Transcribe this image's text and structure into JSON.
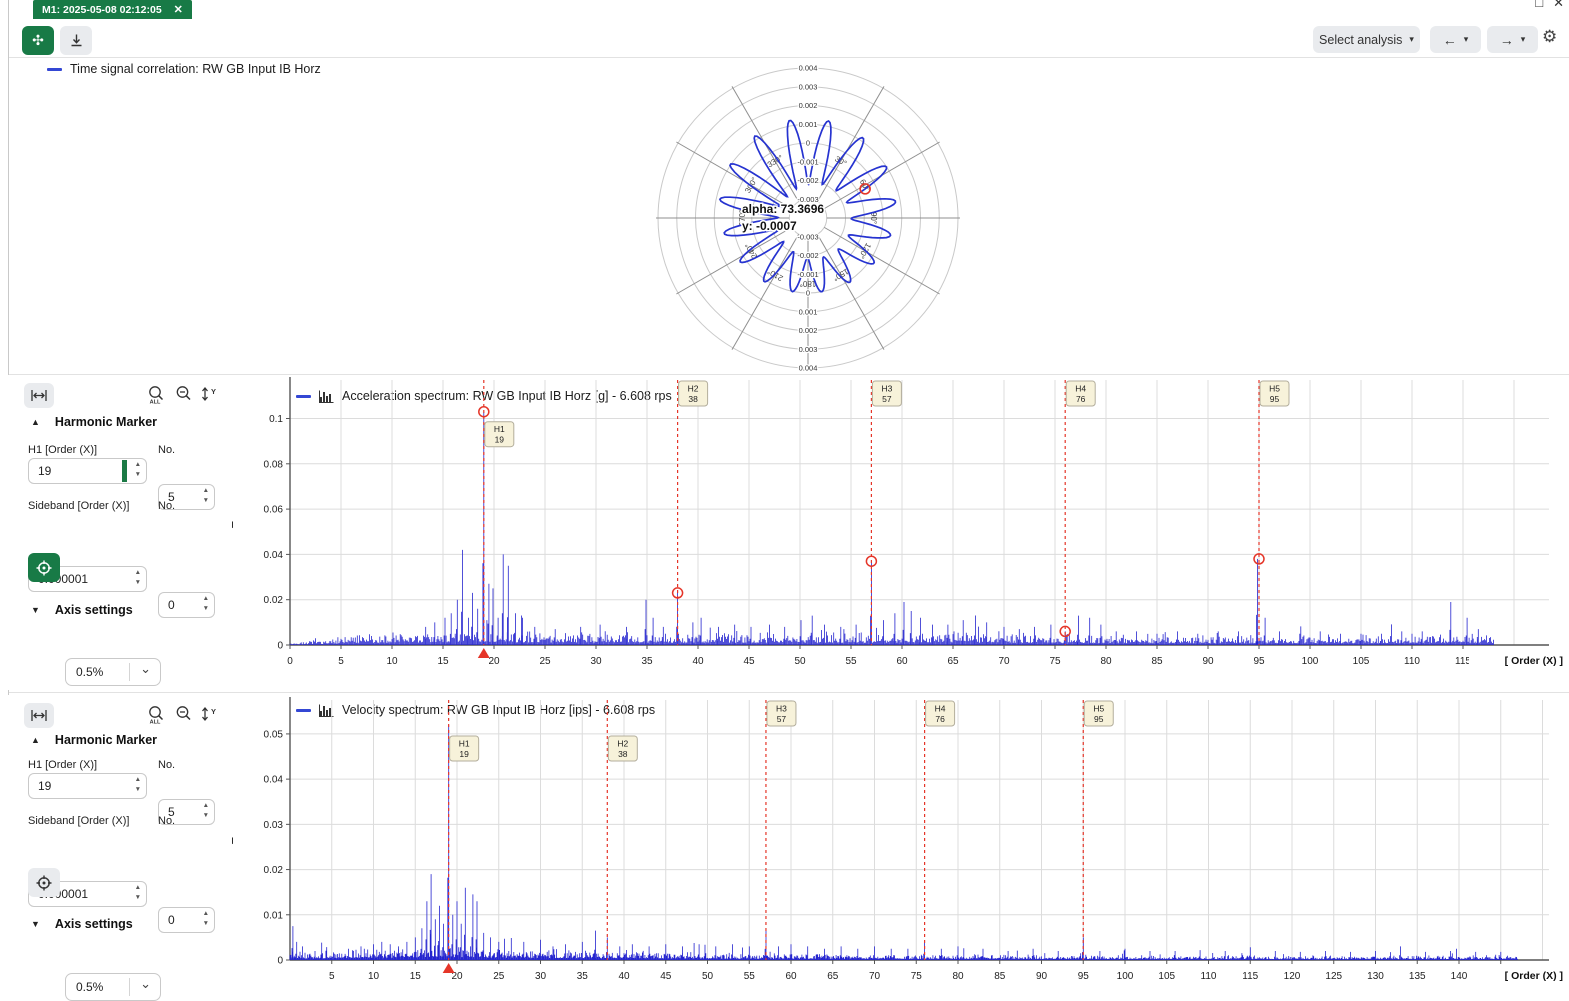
{
  "window": {
    "tab_title": "M1: 2025-05-08 02:12:05"
  },
  "icons": {
    "close": "✕",
    "maximize": "□",
    "back": "←",
    "forward": "→",
    "chevron_down": "▾",
    "select_chevron": "⌄",
    "gear": "⚙",
    "app": "✣",
    "collapse_left": "◀",
    "collapse_up": "▲",
    "collapse_down": "▼",
    "spin_up": "▲",
    "spin_down": "▼"
  },
  "toolbar": {
    "select_analysis_label": "Select analysis"
  },
  "polar_legend": "Time signal correlation: RW GB Input IB Horz",
  "panels": [
    {
      "header": "Harmonic Marker",
      "h1_label": "H1 [Order (X)]",
      "h1_value": "19",
      "no_label": "No.",
      "no_value": "5",
      "sideband_label": "Sideband [Order (X)]",
      "sideband_value": "0.000001",
      "sideband_no_label": "No.",
      "sideband_no_value": "0",
      "tolerance_value": "0.5%",
      "axis_settings_label": "Axis settings"
    },
    {
      "header": "Harmonic Marker",
      "h1_label": "H1 [Order (X)]",
      "h1_value": "19",
      "no_label": "No.",
      "no_value": "5",
      "sideband_label": "Sideband [Order (X)]",
      "sideband_value": "0.000001",
      "sideband_no_label": "No.",
      "sideband_no_value": "0",
      "tolerance_value": "0.5%",
      "axis_settings_label": "Axis settings"
    }
  ],
  "chart_data": [
    {
      "type": "line",
      "subtype": "polar",
      "title": "Time signal correlation: RW GB Input IB Horz",
      "rlim": [
        -0.004,
        0.004
      ],
      "rticks": [
        0.004,
        0.003,
        0.002,
        0.001,
        0,
        -0.001,
        -0.002,
        -0.003
      ],
      "angle_ticks_deg": [
        30,
        60,
        90,
        120,
        150,
        180,
        210,
        240,
        270,
        300,
        330
      ],
      "annotation": {
        "line1": "alpha: 73.3696",
        "line2": "y: -0.0007"
      },
      "series_model": {
        "lobes": 16,
        "mean": -0.0007,
        "amplitude": 0.00135,
        "amplitude_mod": 0.00045,
        "phase_deg": 258,
        "marker_angle_deg": 63
      },
      "line_color": "#2633d0",
      "marker_color": "#e53528"
    },
    {
      "type": "bar",
      "subtype": "spectrum",
      "title": "Acceleration spectrum: RW GB Input IB Horz [g] - 6.608 rps",
      "xlabel": "[ Order (X) ]",
      "ylim": [
        0,
        0.117
      ],
      "yticks": [
        0,
        0.02,
        0.04,
        0.06,
        0.08,
        0.1
      ],
      "xtick_start": 0,
      "xtick_end": 115,
      "xtick_step": 5,
      "xmax": 118,
      "line_color": "#2424cf",
      "marker_color": "#e53528",
      "fundamental_marker_x": 19,
      "harmonics": {
        "base_order": 19,
        "count": 5,
        "markers": [
          {
            "name": "H1",
            "order": 19,
            "peak": 0.103,
            "label_pos": "below_peak",
            "circle": true
          },
          {
            "name": "H2",
            "order": 38,
            "peak": 0.023,
            "label_pos": "top",
            "circle": true
          },
          {
            "name": "H3",
            "order": 57,
            "peak": 0.037,
            "label_pos": "top",
            "circle": true
          },
          {
            "name": "H4",
            "order": 76,
            "peak": 0.006,
            "label_pos": "top",
            "circle": true
          },
          {
            "name": "H5",
            "order": 95,
            "peak": 0.038,
            "label_pos": "top",
            "circle": true
          }
        ]
      },
      "peaks": [
        [
          13.3,
          0.008
        ],
        [
          14.2,
          0.01
        ],
        [
          15.2,
          0.012
        ],
        [
          15.8,
          0.014
        ],
        [
          16.4,
          0.02
        ],
        [
          16.9,
          0.042
        ],
        [
          17.5,
          0.012
        ],
        [
          17.9,
          0.023
        ],
        [
          18.4,
          0.016
        ],
        [
          19,
          0.103
        ],
        [
          19.5,
          0.027
        ],
        [
          19.9,
          0.025
        ],
        [
          20.4,
          0.012
        ],
        [
          20.9,
          0.04
        ],
        [
          21.4,
          0.035
        ],
        [
          22.1,
          0.014
        ],
        [
          22.8,
          0.012
        ],
        [
          24,
          0.008
        ],
        [
          26,
          0.007
        ],
        [
          28.5,
          0.008
        ],
        [
          30.4,
          0.009
        ],
        [
          33,
          0.008
        ],
        [
          34.9,
          0.02
        ],
        [
          35.6,
          0.012
        ],
        [
          36.6,
          0.008
        ],
        [
          38,
          0.023
        ],
        [
          39.5,
          0.01
        ],
        [
          40.3,
          0.012
        ],
        [
          42,
          0.008
        ],
        [
          43.6,
          0.009
        ],
        [
          45.2,
          0.008
        ],
        [
          47,
          0.009
        ],
        [
          48.5,
          0.008
        ],
        [
          50.1,
          0.011
        ],
        [
          51.2,
          0.013
        ],
        [
          52.4,
          0.009
        ],
        [
          54,
          0.008
        ],
        [
          55.5,
          0.009
        ],
        [
          57,
          0.037
        ],
        [
          58.2,
          0.011
        ],
        [
          59.3,
          0.014
        ],
        [
          60.2,
          0.019
        ],
        [
          60.9,
          0.015
        ],
        [
          61.8,
          0.012
        ],
        [
          63,
          0.009
        ],
        [
          64.5,
          0.009
        ],
        [
          66,
          0.011
        ],
        [
          67.2,
          0.012
        ],
        [
          68.3,
          0.01
        ],
        [
          70,
          0.008
        ],
        [
          71.5,
          0.007
        ],
        [
          73,
          0.008
        ],
        [
          74.6,
          0.009
        ],
        [
          76,
          0.006
        ],
        [
          77.3,
          0.013
        ],
        [
          78.4,
          0.012
        ],
        [
          79.5,
          0.009
        ],
        [
          81,
          0.006
        ],
        [
          83,
          0.006
        ],
        [
          85,
          0.005
        ],
        [
          87,
          0.006
        ],
        [
          89,
          0.005
        ],
        [
          91,
          0.006
        ],
        [
          93,
          0.006
        ],
        [
          94.85,
          0.038
        ],
        [
          95.6,
          0.012
        ],
        [
          97,
          0.006
        ],
        [
          99,
          0.005
        ],
        [
          101,
          0.006
        ],
        [
          103,
          0.005
        ],
        [
          105,
          0.005
        ],
        [
          107,
          0.005
        ],
        [
          109,
          0.006
        ],
        [
          111,
          0.006
        ],
        [
          113.8,
          0.019
        ],
        [
          115.4,
          0.012
        ],
        [
          116.5,
          0.007
        ]
      ],
      "noise_env": [
        [
          0,
          0.0008
        ],
        [
          4,
          0.002
        ],
        [
          6,
          0.0035
        ],
        [
          10,
          0.004
        ],
        [
          15,
          0.0045
        ],
        [
          25,
          0.0045
        ],
        [
          35,
          0.004
        ],
        [
          55,
          0.004
        ],
        [
          65,
          0.0045
        ],
        [
          75,
          0.0035
        ],
        [
          90,
          0.003
        ],
        [
          105,
          0.003
        ],
        [
          112,
          0.004
        ],
        [
          118,
          0.0035
        ]
      ],
      "noise_seed": 7
    },
    {
      "type": "bar",
      "subtype": "spectrum",
      "title": "Velocity spectrum: RW GB Input IB Horz [ips] - 6.608 rps",
      "xlabel": "[ Order (X) ]",
      "ylim": [
        0,
        0.0575
      ],
      "yticks": [
        0,
        0.01,
        0.02,
        0.03,
        0.04,
        0.05
      ],
      "xtick_start": 5,
      "xtick_end": 145,
      "xtick_step": 5,
      "xmax": 147,
      "line_color": "#2424cf",
      "marker_color": "#e53528",
      "fundamental_marker_x": 19,
      "harmonics": {
        "base_order": 19,
        "count": 5,
        "markers": [
          {
            "name": "H1",
            "order": 19,
            "peak": 0.052,
            "label_pos": "row2",
            "circle": false
          },
          {
            "name": "H2",
            "order": 38,
            "peak": 0.005,
            "label_pos": "row2",
            "circle": false
          },
          {
            "name": "H3",
            "order": 57,
            "peak": 0.007,
            "label_pos": "top",
            "circle": false
          },
          {
            "name": "H4",
            "order": 76,
            "peak": 0.004,
            "label_pos": "top",
            "circle": false
          },
          {
            "name": "H5",
            "order": 95,
            "peak": 0.005,
            "label_pos": "top",
            "circle": false
          }
        ]
      },
      "peaks": [
        [
          0.35,
          0.0075
        ],
        [
          0.8,
          0.004
        ],
        [
          1.5,
          0.003
        ],
        [
          3,
          0.002
        ],
        [
          7,
          0.0025
        ],
        [
          8.5,
          0.003
        ],
        [
          10,
          0.0035
        ],
        [
          11,
          0.004
        ],
        [
          12,
          0.0035
        ],
        [
          13,
          0.003
        ],
        [
          14,
          0.004
        ],
        [
          15,
          0.005
        ],
        [
          15.8,
          0.007
        ],
        [
          16.4,
          0.013
        ],
        [
          16.9,
          0.019
        ],
        [
          17.4,
          0.009
        ],
        [
          17.9,
          0.012
        ],
        [
          18.4,
          0.008
        ],
        [
          19,
          0.052
        ],
        [
          19.5,
          0.01
        ],
        [
          20,
          0.013
        ],
        [
          20.5,
          0.008
        ],
        [
          21,
          0.016
        ],
        [
          21.9,
          0.0145
        ],
        [
          22.4,
          0.013
        ],
        [
          23.2,
          0.006
        ],
        [
          24,
          0.005
        ],
        [
          25,
          0.004
        ],
        [
          26.5,
          0.0035
        ],
        [
          28,
          0.004
        ],
        [
          30,
          0.0045
        ],
        [
          31.5,
          0.003
        ],
        [
          33,
          0.0035
        ],
        [
          35,
          0.004
        ],
        [
          36.6,
          0.0065
        ],
        [
          38,
          0.005
        ],
        [
          39.5,
          0.003
        ],
        [
          41,
          0.0035
        ],
        [
          43,
          0.003
        ],
        [
          45,
          0.0035
        ],
        [
          47,
          0.003
        ],
        [
          49,
          0.0035
        ],
        [
          51,
          0.003
        ],
        [
          53,
          0.0035
        ],
        [
          55,
          0.003
        ],
        [
          57,
          0.007
        ],
        [
          58.5,
          0.003
        ],
        [
          60,
          0.0035
        ],
        [
          62,
          0.003
        ],
        [
          64,
          0.0025
        ],
        [
          66,
          0.003
        ],
        [
          68,
          0.0025
        ],
        [
          70,
          0.003
        ],
        [
          72,
          0.0025
        ],
        [
          74,
          0.0025
        ],
        [
          76,
          0.004
        ],
        [
          78,
          0.0025
        ],
        [
          80,
          0.003
        ],
        [
          83,
          0.0025
        ],
        [
          86,
          0.002
        ],
        [
          89,
          0.0025
        ],
        [
          92,
          0.002
        ],
        [
          95,
          0.005
        ],
        [
          97,
          0.002
        ],
        [
          100,
          0.0025
        ],
        [
          103,
          0.002
        ],
        [
          106,
          0.002
        ],
        [
          109,
          0.0022
        ],
        [
          112,
          0.002
        ],
        [
          115,
          0.0028
        ],
        [
          118,
          0.002
        ],
        [
          121,
          0.0018
        ],
        [
          124,
          0.002
        ],
        [
          127,
          0.0018
        ],
        [
          130,
          0.002
        ],
        [
          133,
          0.003
        ],
        [
          136,
          0.0018
        ],
        [
          139,
          0.002
        ],
        [
          142,
          0.0018
        ],
        [
          145,
          0.0018
        ]
      ],
      "noise_env": [
        [
          0,
          0.002
        ],
        [
          2,
          0.0012
        ],
        [
          6,
          0.0015
        ],
        [
          12,
          0.002
        ],
        [
          18,
          0.0025
        ],
        [
          24,
          0.002
        ],
        [
          30,
          0.0018
        ],
        [
          40,
          0.0015
        ],
        [
          50,
          0.0012
        ],
        [
          60,
          0.001
        ],
        [
          80,
          0.0009
        ],
        [
          100,
          0.0008
        ],
        [
          120,
          0.0007
        ],
        [
          147,
          0.0008
        ]
      ],
      "noise_seed": 13
    }
  ]
}
